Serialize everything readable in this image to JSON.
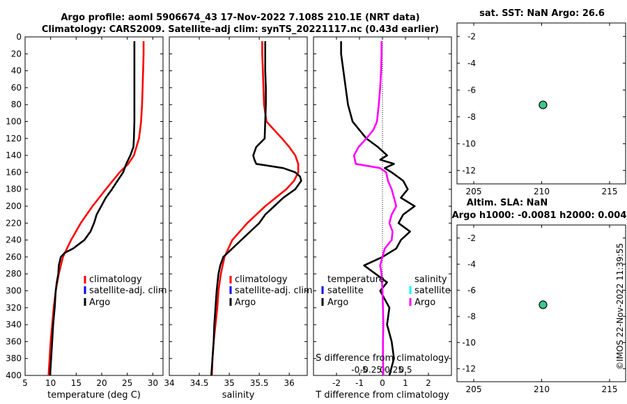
{
  "header": {
    "title_line1": "Argo profile: aoml 5906674_43 17-Nov-2022 7.108S 210.1E (NRT data)",
    "title_line2": "Climatology: CARS2009. Satellite-adj clim: synTS_20221117.nc (0.43d earlier)"
  },
  "side_stamp": "©IMOS 22-Nov-2022 11:39:55",
  "colors": {
    "climatology": "#ff0000",
    "satellite": "#0000ff",
    "argo": "#000000",
    "salinity_diff": "#ff00ff",
    "salinity_sat": "#00ffff",
    "dot_fill": "#3cc88c"
  },
  "chart_data": [
    {
      "id": "temperature",
      "type": "line",
      "xlabel": "temperature (deg C)",
      "ylabel": "",
      "xlim": [
        5,
        32
      ],
      "ylim": [
        400,
        0
      ],
      "xticks": [
        5,
        10,
        15,
        20,
        25,
        30
      ],
      "yticks": [
        0,
        20,
        40,
        60,
        80,
        100,
        120,
        140,
        160,
        180,
        200,
        220,
        240,
        260,
        280,
        300,
        320,
        340,
        360,
        380,
        400
      ],
      "legend": [
        "climatology",
        "satellite-adj. clim",
        "Argo"
      ],
      "series": [
        {
          "name": "climatology",
          "color": "#ff0000",
          "depth": [
            5,
            20,
            40,
            60,
            80,
            100,
            120,
            140,
            150,
            160,
            180,
            200,
            220,
            240,
            260,
            280,
            300,
            320,
            340,
            360,
            380,
            400
          ],
          "values": [
            28.2,
            28.2,
            28.1,
            28.0,
            27.9,
            27.7,
            27.3,
            26.3,
            25.2,
            23.5,
            20.8,
            18.2,
            15.9,
            14.0,
            12.4,
            11.6,
            11.0,
            10.6,
            10.3,
            10.0,
            9.8,
            9.6
          ]
        },
        {
          "name": "Argo",
          "color": "#000000",
          "depth": [
            5,
            20,
            40,
            60,
            80,
            100,
            120,
            130,
            140,
            150,
            160,
            170,
            180,
            190,
            200,
            210,
            220,
            230,
            240,
            250,
            255,
            260,
            270,
            280,
            290,
            300,
            320,
            340,
            360,
            380,
            400
          ],
          "values": [
            26.4,
            26.4,
            26.4,
            26.4,
            26.4,
            26.4,
            26.3,
            26.2,
            25.6,
            24.8,
            24.2,
            23.1,
            22.0,
            20.8,
            19.9,
            19.0,
            18.5,
            17.8,
            16.6,
            14.4,
            12.8,
            12.0,
            11.6,
            11.5,
            11.2,
            11.0,
            10.8,
            10.5,
            10.3,
            10.1,
            9.9
          ]
        }
      ]
    },
    {
      "id": "salinity",
      "type": "line",
      "xlabel": "salinity",
      "ylabel": "",
      "xlim": [
        34,
        36.3
      ],
      "ylim": [
        400,
        0
      ],
      "xticks": [
        34,
        34.5,
        35,
        35.5,
        36
      ],
      "xtick_labels": [
        "34",
        "34.5",
        "35",
        "35.5",
        "36"
      ],
      "legend": [
        "climatology",
        "satellite-adj. clim",
        "Argo"
      ],
      "series": [
        {
          "name": "climatology",
          "color": "#ff0000",
          "depth": [
            5,
            20,
            40,
            60,
            80,
            100,
            110,
            120,
            130,
            140,
            150,
            160,
            170,
            180,
            200,
            220,
            240,
            260,
            280,
            300,
            320,
            340,
            360,
            380,
            400
          ],
          "values": [
            35.55,
            35.55,
            35.56,
            35.57,
            35.58,
            35.62,
            35.75,
            35.88,
            36.0,
            36.1,
            36.15,
            36.15,
            36.08,
            35.95,
            35.6,
            35.3,
            35.05,
            34.92,
            34.86,
            34.82,
            34.8,
            34.77,
            34.74,
            34.72,
            34.71
          ]
        },
        {
          "name": "Argo",
          "color": "#000000",
          "depth": [
            5,
            20,
            40,
            60,
            80,
            100,
            120,
            130,
            140,
            145,
            150,
            155,
            160,
            165,
            170,
            180,
            190,
            200,
            210,
            220,
            230,
            240,
            250,
            260,
            270,
            280,
            300,
            320,
            340,
            360,
            380,
            400
          ],
          "values": [
            35.6,
            35.6,
            35.6,
            35.61,
            35.61,
            35.6,
            35.59,
            35.45,
            35.4,
            35.42,
            35.45,
            35.9,
            36.1,
            36.18,
            36.2,
            36.1,
            35.9,
            35.75,
            35.6,
            35.5,
            35.35,
            35.2,
            35.05,
            34.9,
            34.85,
            34.82,
            34.79,
            34.77,
            34.75,
            34.74,
            34.72,
            34.7
          ]
        }
      ]
    },
    {
      "id": "difference",
      "type": "line",
      "xlabel": "T difference from climatology",
      "top_label": "S difference from climatology",
      "xlim": [
        -3,
        3
      ],
      "ylim": [
        400,
        0
      ],
      "xticks": [
        -2,
        -1,
        0,
        1,
        2
      ],
      "xtick_labels": [
        "-2",
        "-1",
        "0",
        "1",
        "2"
      ],
      "sticks": [
        -0.5,
        -0.25,
        0,
        0.25,
        0.5
      ],
      "stick_labels": [
        "-0.5",
        "-0.25",
        "0",
        "0.25",
        "0.5"
      ],
      "legend_temperature": {
        "title": "temperature",
        "items": [
          "satellite",
          "Argo"
        ]
      },
      "legend_salinity": {
        "title": "salinity",
        "items": [
          "satellite",
          "Argo"
        ]
      },
      "series": [
        {
          "name": "T Argo - clim",
          "color": "#000000",
          "depth": [
            5,
            20,
            40,
            60,
            80,
            100,
            110,
            120,
            130,
            140,
            145,
            150,
            155,
            160,
            170,
            180,
            190,
            200,
            210,
            220,
            230,
            240,
            250,
            260,
            270,
            280,
            290,
            300,
            320,
            340,
            360,
            380,
            400
          ],
          "values": [
            -1.8,
            -1.8,
            -1.7,
            -1.6,
            -1.5,
            -1.3,
            -1.0,
            -0.7,
            -0.2,
            0.2,
            -0.1,
            0.5,
            0.1,
            0.4,
            0.9,
            1.1,
            0.8,
            1.4,
            0.9,
            0.7,
            1.2,
            0.8,
            0.6,
            0.0,
            -0.8,
            -0.3,
            0.2,
            -0.1,
            0.3,
            0.2,
            0.4,
            0.5,
            0.3
          ]
        },
        {
          "name": "S Argo - clim",
          "color": "#ff00ff",
          "depth": [
            5,
            20,
            40,
            60,
            80,
            100,
            110,
            120,
            130,
            140,
            145,
            150,
            155,
            160,
            170,
            180,
            190,
            200,
            210,
            220,
            230,
            240,
            250,
            260,
            270,
            280,
            300,
            320,
            340,
            360,
            380,
            400
          ],
          "values": [
            -0.02,
            -0.02,
            -0.03,
            -0.05,
            -0.08,
            -0.12,
            -0.2,
            -0.35,
            -0.52,
            -0.62,
            -0.6,
            -0.58,
            -0.05,
            0.08,
            0.12,
            0.2,
            0.25,
            0.3,
            0.2,
            0.15,
            0.22,
            0.2,
            0.05,
            0.0,
            -0.05,
            -0.02,
            0.0,
            0.01,
            0.02,
            0.01,
            0.01,
            0.02
          ]
        }
      ]
    },
    {
      "id": "sst_map",
      "type": "scatter",
      "title": "sat. SST: NaN Argo: 26.6",
      "xlim": [
        205,
        215
      ],
      "ylim": [
        -13,
        -1
      ],
      "xticks": [
        205,
        210,
        215
      ],
      "yticks": [
        -2,
        -4,
        -6,
        -8,
        -10,
        -12
      ],
      "points": [
        {
          "x": 210.1,
          "y": -7.108
        }
      ]
    },
    {
      "id": "sla_map",
      "type": "scatter",
      "title_line1": "Altim. SLA: NaN",
      "title_line2": "Argo h1000: -0.0081 h2000: 0.004",
      "xlim": [
        205,
        215
      ],
      "ylim": [
        -13,
        -1
      ],
      "xticks": [
        205,
        210,
        215
      ],
      "yticks": [
        -2,
        -4,
        -6,
        -8,
        -10,
        -12
      ],
      "points": [
        {
          "x": 210.1,
          "y": -7.108
        }
      ]
    }
  ]
}
